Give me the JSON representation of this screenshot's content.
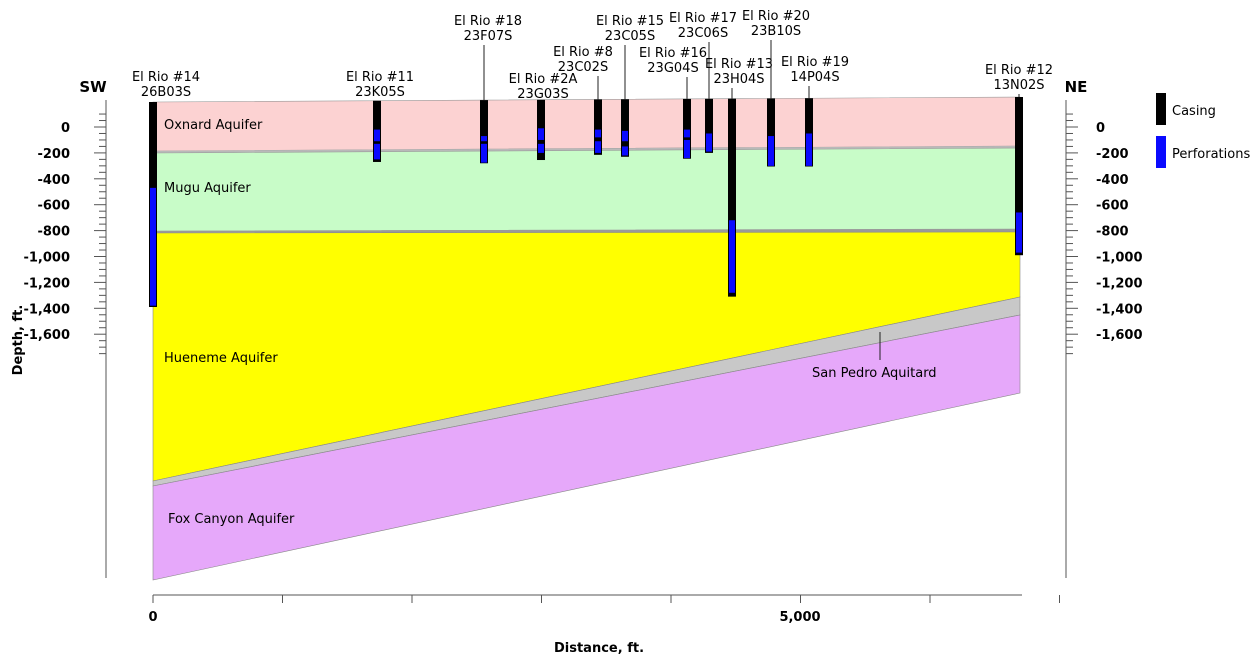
{
  "chart_data": {
    "type": "cross_section",
    "orientation": {
      "left": "SW",
      "right": "NE"
    },
    "xlabel": "Distance, ft.",
    "ylabel": "Depth, ft.",
    "y_ticks": [
      0,
      -200,
      -400,
      -600,
      -800,
      -1000,
      -1200,
      -1400,
      -1600
    ],
    "y_tick_labels": [
      "0",
      "-200",
      "-400",
      "-600",
      "-800",
      "-1,000",
      "-1,200",
      "-1,400",
      "-1,600"
    ],
    "x_ticks": [
      0,
      5000
    ],
    "x_tick_labels": [
      "0",
      "5,000"
    ],
    "legend": [
      {
        "label": "Casing",
        "color": "#000000"
      },
      {
        "label": "Perforations",
        "color": "#0a0aff"
      }
    ],
    "layers": [
      {
        "name": "Oxnard Aquifer",
        "color": "#fcd2d2"
      },
      {
        "name": "Mugu Aquifer",
        "color": "#c8fcc8"
      },
      {
        "name": "Hueneme Aquifer",
        "color": "#ffff00"
      },
      {
        "name": "San Pedro Aquitard",
        "color": "#c8c8c8"
      },
      {
        "name": "Fox Canyon Aquifer",
        "color": "#e6a8fa"
      }
    ],
    "wells": [
      {
        "name": "El Rio #14",
        "id": "26B03S",
        "distance": 0,
        "bottom": -1390,
        "perforations": [
          [
            -470,
            -1380
          ]
        ]
      },
      {
        "name": "El Rio #11",
        "id": "23K05S",
        "distance": 1730,
        "bottom": -270,
        "perforations": [
          [
            -20,
            -110
          ],
          [
            -130,
            -250
          ]
        ]
      },
      {
        "name": "El Rio #18",
        "id": "23F07S",
        "distance": 2560,
        "bottom": -280,
        "perforations": [
          [
            -70,
            -110
          ],
          [
            -130,
            -275
          ]
        ]
      },
      {
        "name": "El Rio #2A",
        "id": "23G03S",
        "distance": 3000,
        "bottom": -255,
        "perforations": [
          [
            -10,
            -100
          ],
          [
            -130,
            -200
          ]
        ]
      },
      {
        "name": "El Rio #8",
        "id": "23C02S",
        "distance": 3440,
        "bottom": -215,
        "perforations": [
          [
            -20,
            -80
          ],
          [
            -110,
            -200
          ]
        ]
      },
      {
        "name": "El Rio #15",
        "id": "23C05S",
        "distance": 3650,
        "bottom": -230,
        "perforations": [
          [
            -30,
            -110
          ],
          [
            -150,
            -220
          ]
        ]
      },
      {
        "name": "El Rio #16",
        "id": "23G04S",
        "distance": 4130,
        "bottom": -245,
        "perforations": [
          [
            -20,
            -80
          ],
          [
            -100,
            -240
          ]
        ]
      },
      {
        "name": "El Rio #17",
        "id": "23C06S",
        "distance": 4300,
        "bottom": -200,
        "perforations": [
          [
            -50,
            -190
          ]
        ]
      },
      {
        "name": "El Rio #13",
        "id": "23H04S",
        "distance": 4480,
        "bottom": -1310,
        "perforations": [
          [
            -720,
            -1280
          ]
        ]
      },
      {
        "name": "El Rio #20",
        "id": "23B10S",
        "distance": 4780,
        "bottom": -305,
        "perforations": [
          [
            -70,
            -300
          ]
        ]
      },
      {
        "name": "El Rio #19",
        "id": "14P04S",
        "distance": 5070,
        "bottom": -305,
        "perforations": [
          [
            -50,
            -300
          ]
        ]
      },
      {
        "name": "El Rio #12",
        "id": "13N02S",
        "distance": 6700,
        "bottom": -990,
        "perforations": [
          [
            -660,
            -970
          ]
        ]
      }
    ]
  }
}
